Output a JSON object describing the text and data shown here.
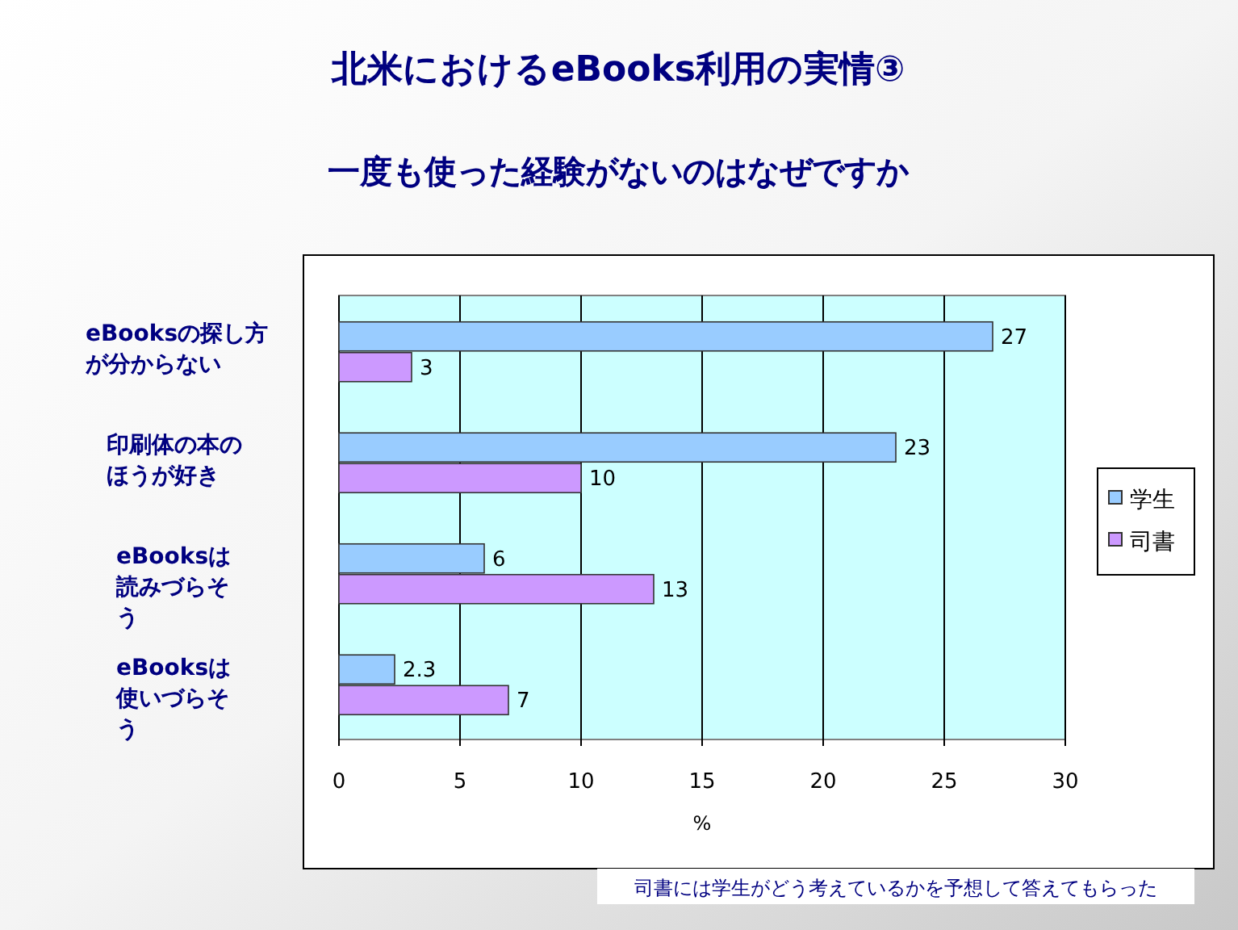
{
  "chart_data": {
    "type": "bar",
    "orientation": "horizontal",
    "title": "北米におけるeBooks利用の実情③",
    "subtitle": "一度も使った経験がないのはなぜですか",
    "categories": [
      "eBooksの探し方が分からない",
      "印刷体の本のほうが好き",
      "eBooksは読みづらそう",
      "eBooksは使いづらそう"
    ],
    "series": [
      {
        "name": "学生",
        "color": "#99ccff",
        "values": [
          27,
          23,
          6,
          2.3
        ]
      },
      {
        "name": "司書",
        "color": "#cc99ff",
        "values": [
          3,
          10,
          13,
          7
        ]
      }
    ],
    "xlim": [
      0,
      30
    ],
    "xticks": [
      0,
      5,
      10,
      15,
      20,
      25,
      30
    ],
    "xlabel": "%",
    "grid": "x",
    "legend": "right",
    "data_labels": true,
    "annotations": [
      "司書には学生がどう考えているかを予想して答えてもらった"
    ]
  }
}
